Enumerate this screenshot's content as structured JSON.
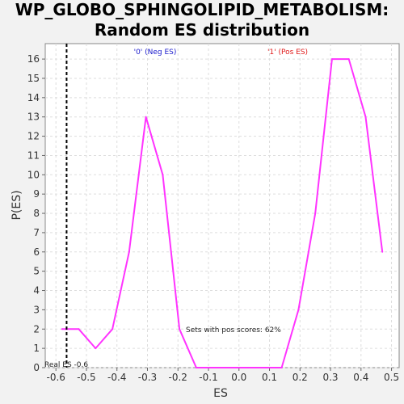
{
  "chart_data": {
    "type": "line",
    "title": "WP_GLOBO_SPHINGOLIPID_METABOLISM: Random ES distribution",
    "title_lines": [
      "WP_GLOBO_SPHINGOLIPID_METABOLISM:",
      "Random ES distribution"
    ],
    "xlabel": "ES",
    "ylabel": "P(ES)",
    "xlim": [
      -0.635,
      0.525
    ],
    "ylim": [
      0,
      16.8
    ],
    "x_ticks": [
      -0.6,
      -0.5,
      -0.4,
      -0.3,
      -0.2,
      -0.1,
      0.0,
      0.1,
      0.2,
      0.3,
      0.4,
      0.5
    ],
    "x_tick_labels": [
      "-0.6",
      "-0.5",
      "-0.4",
      "-0.3",
      "-0.2",
      "-0.1",
      "0.0",
      "0.1",
      "0.2",
      "0.3",
      "0.4",
      "0.5"
    ],
    "y_ticks": [
      0,
      1,
      2,
      3,
      4,
      5,
      6,
      7,
      8,
      9,
      10,
      11,
      12,
      13,
      14,
      15,
      16
    ],
    "grid": true,
    "series": [
      {
        "color": "#ff33ff",
        "x": [
          -0.58,
          -0.525,
          -0.47,
          -0.415,
          -0.36,
          -0.305,
          -0.25,
          -0.195,
          -0.14,
          -0.085,
          -0.03,
          0.03,
          0.085,
          0.14,
          0.195,
          0.25,
          0.305,
          0.36,
          0.415,
          0.47
        ],
        "y": [
          2,
          2,
          1,
          2,
          6,
          13,
          10,
          2,
          0,
          0,
          0,
          0,
          0,
          0,
          3,
          8,
          16,
          16,
          13,
          6
        ]
      }
    ],
    "real_es": {
      "x": -0.565,
      "label": "Real ES -0.6"
    },
    "annotations": {
      "neg_label": "'0' (Neg ES)",
      "pos_label": "'1' (Pos ES)",
      "pos_scores": "Sets with pos scores: 62%"
    },
    "colors": {
      "neg": "#1a1acc",
      "pos": "#e01a1a",
      "line": "#ff33ff",
      "real_es_line": "#000000"
    }
  }
}
